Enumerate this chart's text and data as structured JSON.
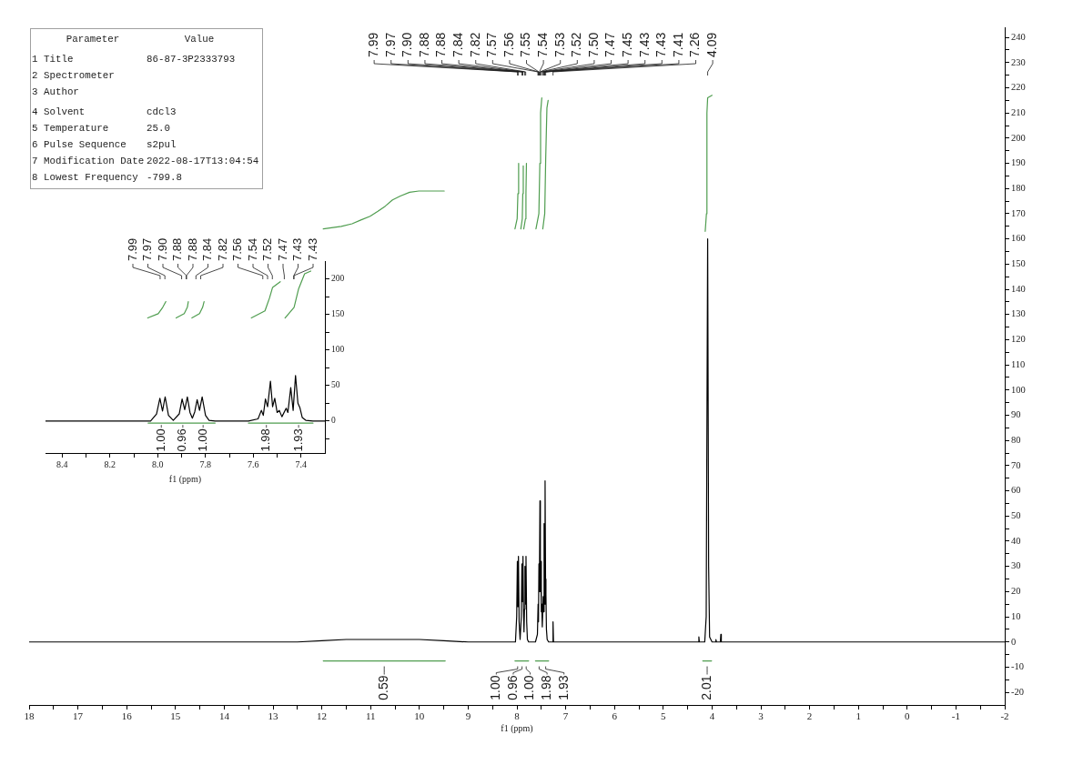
{
  "chart_data": [
    {
      "type": "line",
      "xlabel": "f1 (ppm)",
      "xlim": [
        18,
        -2
      ],
      "xticks": [
        18,
        {
          "value": 17.5,
          "label": null
        },
        17,
        {
          "value": 16.5,
          "label": null
        },
        16,
        {
          "value": 15.5,
          "label": null
        },
        15,
        {
          "value": 14.5,
          "label": null
        },
        14,
        {
          "value": 13.5,
          "label": null
        },
        13,
        {
          "value": 12.5,
          "label": null
        },
        12,
        {
          "value": 11.5,
          "label": null
        },
        11,
        {
          "value": 10.5,
          "label": null
        },
        10,
        {
          "value": 9.5,
          "label": null
        },
        9,
        {
          "value": 8.5,
          "label": null
        },
        8,
        {
          "value": 7.5,
          "label": null
        },
        7,
        {
          "value": 6.5,
          "label": null
        },
        6,
        {
          "value": 5.5,
          "label": null
        },
        5,
        {
          "value": 4.5,
          "label": null
        },
        4,
        {
          "value": 3.5,
          "label": null
        },
        3,
        {
          "value": 2.5,
          "label": null
        },
        2,
        {
          "value": 1.5,
          "label": null
        },
        1,
        {
          "value": 0.5,
          "label": null
        },
        0,
        {
          "value": -0.5,
          "label": null
        },
        -1,
        {
          "value": -1.5,
          "label": null
        },
        -2
      ],
      "ylim": [
        -25,
        244
      ],
      "yticks": [
        -20,
        {
          "value": -15,
          "label": null
        },
        -10,
        {
          "value": -5,
          "label": null
        },
        0,
        {
          "value": 5,
          "label": null
        },
        10,
        {
          "value": 15,
          "label": null
        },
        20,
        {
          "value": 25,
          "label": null
        },
        30,
        {
          "value": 35,
          "label": null
        },
        40,
        {
          "value": 45,
          "label": null
        },
        50,
        {
          "value": 55,
          "label": null
        },
        60,
        {
          "value": 65,
          "label": null
        },
        70,
        {
          "value": 75,
          "label": null
        },
        80,
        {
          "value": 85,
          "label": null
        },
        90,
        {
          "value": 95,
          "label": null
        },
        100,
        {
          "value": 105,
          "label": null
        },
        110,
        {
          "value": 115,
          "label": null
        },
        120,
        {
          "value": 125,
          "label": null
        },
        130,
        {
          "value": 135,
          "label": null
        },
        140,
        {
          "value": 145,
          "label": null
        },
        150,
        {
          "value": 155,
          "label": null
        },
        160,
        {
          "value": 165,
          "label": null
        },
        170,
        {
          "value": 175,
          "label": null
        },
        180,
        {
          "value": 185,
          "label": null
        },
        190,
        {
          "value": 195,
          "label": null
        },
        200,
        {
          "value": 205,
          "label": null
        },
        210,
        {
          "value": 215,
          "label": null
        },
        220,
        {
          "value": 225,
          "label": null
        },
        230,
        {
          "value": 235,
          "label": null
        },
        240
      ],
      "series": [
        {
          "color": "#000000",
          "x": [
            18,
            13,
            12.5,
            12,
            11.5,
            11,
            10.5,
            10,
            9.5,
            9,
            8.5,
            8.1,
            8.03,
            8.005,
            7.991,
            7.98,
            7.969,
            7.955,
            7.935,
            7.91,
            7.898,
            7.887,
            7.876,
            7.865,
            7.855,
            7.845,
            7.835,
            7.825,
            7.814,
            7.8,
            7.785,
            7.76,
            7.62,
            7.58,
            7.566,
            7.558,
            7.549,
            7.54,
            7.528,
            7.519,
            7.51,
            7.5,
            7.491,
            7.48,
            7.462,
            7.455,
            7.443,
            7.433,
            7.423,
            7.413,
            7.405,
            7.395,
            7.38,
            7.35,
            7.3,
            7.27,
            7.26,
            7.25,
            7.2,
            4.35,
            4.28,
            4.27,
            4.26,
            4.15,
            4.12,
            4.09,
            4.07,
            4.05,
            4,
            3.93,
            3.92,
            3.91,
            3.83,
            3.82,
            3.81,
            3.75,
            -2
          ],
          "values": [
            0,
            0,
            0,
            0.5,
            1,
            1,
            1,
            1,
            0.5,
            0,
            0,
            0,
            0,
            10,
            32,
            14,
            34,
            8,
            1,
            10,
            31,
            16,
            34,
            12,
            4,
            13,
            30,
            15,
            34,
            8,
            1,
            0,
            0,
            3,
            15,
            8,
            31,
            20,
            56,
            20,
            32,
            12,
            15,
            6,
            18,
            12,
            47,
            15,
            64,
            25,
            19,
            5,
            1,
            0,
            0,
            0,
            8,
            0,
            0,
            0,
            0,
            2,
            0,
            0,
            10,
            160,
            30,
            2,
            0,
            0,
            1,
            0,
            0,
            3,
            0,
            0,
            0
          ]
        },
        {
          "color": "#4f9d4f",
          "x": [
            11.97,
            11.6,
            11.38,
            11.2,
            11.01,
            10.85,
            10.7,
            10.55,
            10.39,
            10.2,
            10.01,
            9.75,
            9.49
          ],
          "values": [
            164,
            165,
            166,
            167.5,
            169,
            171,
            173,
            175.5,
            177,
            178.5,
            179,
            179,
            179
          ]
        },
        {
          "color": "#4f9d4f",
          "x": [
            8.04,
            7.995,
            7.98,
            7.965
          ],
          "values": [
            164,
            168,
            178,
            190
          ]
        },
        {
          "color": "#4f9d4f",
          "x": [
            7.92,
            7.89,
            7.88,
            7.87
          ],
          "values": [
            164,
            168,
            178,
            189
          ]
        },
        {
          "color": "#4f9d4f",
          "x": [
            7.86,
            7.825,
            7.815,
            7.805
          ],
          "values": [
            164,
            168,
            178,
            190
          ]
        },
        {
          "color": "#4f9d4f",
          "x": [
            7.61,
            7.55,
            7.53,
            7.515,
            7.49
          ],
          "values": [
            164,
            170,
            190,
            210,
            216
          ]
        },
        {
          "color": "#4f9d4f",
          "x": [
            7.47,
            7.43,
            7.41,
            7.385,
            7.36
          ],
          "values": [
            164,
            170,
            192,
            212,
            215
          ]
        },
        {
          "color": "#4f9d4f",
          "x": [
            4.14,
            4.115,
            4.105,
            4.09,
            4
          ],
          "values": [
            163,
            170,
            210,
            216,
            217
          ]
        },
        {
          "color": "#4f9d4f",
          "x": [
            11.97,
            9.47
          ],
          "values": [
            -7.5,
            -7.5
          ]
        },
        {
          "color": "#4f9d4f",
          "x": [
            8.04,
            7.76
          ],
          "values": [
            -7.5,
            -7.5
          ]
        },
        {
          "color": "#4f9d4f",
          "x": [
            7.62,
            7.35
          ],
          "values": [
            -7.5,
            -7.5
          ]
        },
        {
          "color": "#4f9d4f",
          "x": [
            4.19,
            4.01
          ],
          "values": [
            -7.5,
            -7.5
          ]
        }
      ],
      "annotations": [
        {
          "text": "7.99",
          "x": 7.99
        },
        {
          "text": "7.97",
          "x": 7.97
        },
        {
          "text": "7.90",
          "x": 7.9
        },
        {
          "text": "7.88",
          "x": 7.88
        },
        {
          "text": "7.88",
          "x": 7.88
        },
        {
          "text": "7.84",
          "x": 7.84
        },
        {
          "text": "7.82",
          "x": 7.82
        },
        {
          "text": "7.57",
          "x": 7.57
        },
        {
          "text": "7.56",
          "x": 7.56
        },
        {
          "text": "7.55",
          "x": 7.55
        },
        {
          "text": "7.54",
          "x": 7.54
        },
        {
          "text": "7.53",
          "x": 7.53
        },
        {
          "text": "7.52",
          "x": 7.52
        },
        {
          "text": "7.50",
          "x": 7.5
        },
        {
          "text": "7.47",
          "x": 7.47
        },
        {
          "text": "7.45",
          "x": 7.45
        },
        {
          "text": "7.43",
          "x": 7.43
        },
        {
          "text": "7.43",
          "x": 7.43
        },
        {
          "text": "7.41",
          "x": 7.41
        },
        {
          "text": "7.26",
          "x": 7.26
        },
        {
          "text": "4.09",
          "x": 4.09
        },
        {
          "text": "0.59",
          "x": 10.72,
          "y": -7.5
        },
        {
          "text": "1.00",
          "x": 7.985,
          "y": -7.5
        },
        {
          "text": "0.96",
          "x": 7.895,
          "y": -7.5
        },
        {
          "text": "1.00",
          "x": 7.81,
          "y": -7.5
        },
        {
          "text": "1.98",
          "x": 7.545,
          "y": -7.5
        },
        {
          "text": "1.93",
          "x": 7.41,
          "y": -7.5
        },
        {
          "text": "2.01",
          "x": 4.1,
          "y": -7.5
        }
      ]
    },
    {
      "type": "line",
      "xlabel": "f1 (ppm)",
      "xlim": [
        8.47,
        7.3
      ],
      "xticks": [
        8.4,
        {
          "value": 8.3,
          "label": null
        },
        8.2,
        {
          "value": 8.1,
          "label": null
        },
        {
          "value": 8,
          "label": "8.0"
        },
        {
          "value": 7.9,
          "label": null
        },
        7.8,
        {
          "value": 7.7,
          "label": null
        },
        7.6,
        {
          "value": 7.5,
          "label": null
        },
        7.4
      ],
      "ylim": [
        -45,
        225
      ],
      "yticks": [
        {
          "value": -25,
          "label": null
        },
        0,
        {
          "value": 25,
          "label": null
        },
        50,
        {
          "value": 75,
          "label": null
        },
        100,
        {
          "value": 125,
          "label": null
        },
        150,
        {
          "value": 175,
          "label": null
        },
        200
      ],
      "series": [
        {
          "color": "#000000",
          "x": [
            8.47,
            8.1,
            8.03,
            8.005,
            7.991,
            7.98,
            7.969,
            7.955,
            7.935,
            7.91,
            7.898,
            7.887,
            7.876,
            7.865,
            7.855,
            7.845,
            7.835,
            7.825,
            7.814,
            7.8,
            7.785,
            7.76,
            7.62,
            7.58,
            7.566,
            7.558,
            7.549,
            7.54,
            7.528,
            7.519,
            7.51,
            7.5,
            7.491,
            7.48,
            7.462,
            7.455,
            7.443,
            7.433,
            7.423,
            7.413,
            7.405,
            7.395,
            7.38,
            7.35,
            7.3
          ],
          "values": [
            0,
            0,
            0,
            10,
            32,
            14,
            34,
            8,
            1,
            10,
            31,
            16,
            34,
            12,
            4,
            13,
            30,
            15,
            34,
            8,
            1,
            0,
            0,
            3,
            15,
            8,
            31,
            20,
            56,
            20,
            32,
            12,
            15,
            6,
            18,
            12,
            47,
            15,
            64,
            25,
            19,
            5,
            1,
            0,
            0
          ]
        },
        {
          "color": "#4f9d4f",
          "x": [
            8.042,
            7.998,
            7.979,
            7.966
          ],
          "values": [
            145,
            151,
            160,
            168
          ]
        },
        {
          "color": "#4f9d4f",
          "x": [
            7.923,
            7.889,
            7.876,
            7.872
          ],
          "values": [
            145,
            151,
            160,
            168
          ]
        },
        {
          "color": "#4f9d4f",
          "x": [
            7.857,
            7.825,
            7.812,
            7.806
          ],
          "values": [
            145,
            151,
            160,
            168
          ]
        },
        {
          "color": "#4f9d4f",
          "x": [
            7.608,
            7.551,
            7.532,
            7.519,
            7.487
          ],
          "values": [
            145,
            155,
            173,
            188,
            196
          ]
        },
        {
          "color": "#4f9d4f",
          "x": [
            7.467,
            7.429,
            7.41,
            7.385,
            7.359
          ],
          "values": [
            145,
            160,
            186,
            207,
            211
          ]
        },
        {
          "color": "#4f9d4f",
          "x": [
            8.04,
            7.93,
            7.86,
            7.76
          ],
          "values": [
            -3,
            -3,
            -3,
            -3
          ]
        },
        {
          "color": "#4f9d4f",
          "x": [
            7.62,
            7.47,
            7.35
          ],
          "values": [
            -3,
            -3,
            -3
          ]
        }
      ],
      "annotations": [
        {
          "text": "7.99",
          "x": 7.99
        },
        {
          "text": "7.97",
          "x": 7.97
        },
        {
          "text": "7.90",
          "x": 7.9
        },
        {
          "text": "7.88",
          "x": 7.88
        },
        {
          "text": "7.88",
          "x": 7.88
        },
        {
          "text": "7.84",
          "x": 7.84
        },
        {
          "text": "7.82",
          "x": 7.82
        },
        {
          "text": "7.56",
          "x": 7.56
        },
        {
          "text": "7.54",
          "x": 7.54
        },
        {
          "text": "7.52",
          "x": 7.52
        },
        {
          "text": "7.47",
          "x": 7.47
        },
        {
          "text": "7.43",
          "x": 7.43
        },
        {
          "text": "7.43",
          "x": 7.43
        },
        {
          "text": "1.00",
          "x": 7.985,
          "y": -3
        },
        {
          "text": "0.96",
          "x": 7.895,
          "y": -3
        },
        {
          "text": "1.00",
          "x": 7.81,
          "y": -3
        },
        {
          "text": "1.98",
          "x": 7.545,
          "y": -3
        },
        {
          "text": "1.93",
          "x": 7.41,
          "y": -3
        }
      ]
    },
    {
      "type": "other",
      "annotations": [
        "Parameter",
        "Value"
      ],
      "categories": [
        "1 Title",
        "2 Spectrometer",
        "3 Author",
        "4 Solvent",
        "5 Temperature",
        "6 Pulse Sequence",
        "7 Modification Date",
        "8 Lowest Frequency"
      ],
      "value_labels": [
        "86-87-3P2333793",
        null,
        null,
        "cdcl3",
        "25.0",
        "s2pul",
        "2022-08-17T13:04:54",
        "-799.8"
      ]
    }
  ]
}
